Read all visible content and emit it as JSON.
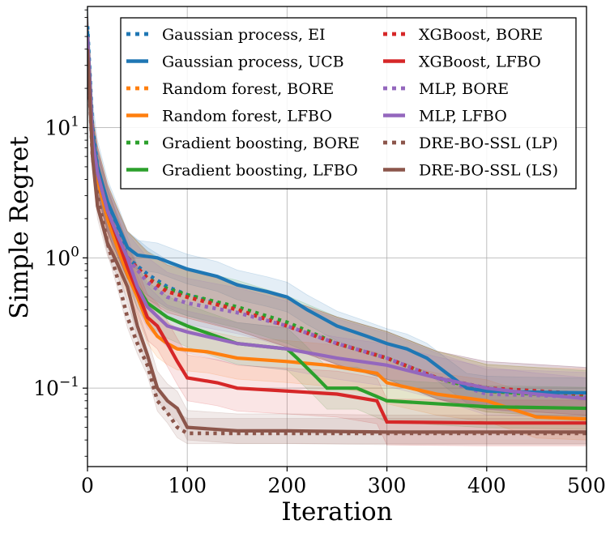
{
  "chart_data": {
    "type": "line",
    "title": "",
    "xlabel": "Iteration",
    "ylabel": "Simple Regret",
    "xlim": [
      0,
      500
    ],
    "ylim": [
      0.025,
      85
    ],
    "yscale": "log",
    "grid": true,
    "legend_location": "upper-right",
    "x_ticks": [
      {
        "value": 0,
        "label": "0"
      },
      {
        "value": 100,
        "label": "100"
      },
      {
        "value": 200,
        "label": "200"
      },
      {
        "value": 300,
        "label": "300"
      },
      {
        "value": 400,
        "label": "400"
      },
      {
        "value": 500,
        "label": "500"
      }
    ],
    "y_ticks": [
      {
        "value": 0.1,
        "base": "10",
        "exp": "−1"
      },
      {
        "value": 1,
        "base": "10",
        "exp": "0"
      },
      {
        "value": 10,
        "base": "10",
        "exp": "1"
      }
    ],
    "series": [
      {
        "name": "Gaussian process, EI",
        "color": "#1f77b4",
        "style": "dotted",
        "points": [
          [
            0,
            60
          ],
          [
            5,
            10
          ],
          [
            10,
            5
          ],
          [
            20,
            2.5
          ],
          [
            30,
            1.6
          ],
          [
            40,
            1.0
          ],
          [
            60,
            0.75
          ],
          [
            80,
            0.6
          ],
          [
            100,
            0.52
          ],
          [
            150,
            0.4
          ],
          [
            200,
            0.3
          ],
          [
            250,
            0.22
          ],
          [
            300,
            0.17
          ],
          [
            350,
            0.12
          ],
          [
            400,
            0.1
          ],
          [
            450,
            0.095
          ],
          [
            500,
            0.09
          ]
        ],
        "band": [
          1.6,
          1.45
        ]
      },
      {
        "name": "Gaussian process, UCB",
        "color": "#1f77b4",
        "style": "solid",
        "points": [
          [
            0,
            55
          ],
          [
            5,
            9
          ],
          [
            10,
            5
          ],
          [
            20,
            2.7
          ],
          [
            30,
            1.8
          ],
          [
            40,
            1.2
          ],
          [
            50,
            1.05
          ],
          [
            70,
            1.0
          ],
          [
            100,
            0.82
          ],
          [
            130,
            0.72
          ],
          [
            150,
            0.62
          ],
          [
            180,
            0.55
          ],
          [
            200,
            0.5
          ],
          [
            220,
            0.4
          ],
          [
            250,
            0.3
          ],
          [
            280,
            0.25
          ],
          [
            300,
            0.22
          ],
          [
            320,
            0.2
          ],
          [
            340,
            0.17
          ],
          [
            360,
            0.13
          ],
          [
            380,
            0.1
          ],
          [
            400,
            0.095
          ],
          [
            450,
            0.093
          ],
          [
            500,
            0.092
          ]
        ],
        "band": [
          1.3,
          1.3
        ]
      },
      {
        "name": "Random forest, BORE",
        "color": "#ff7f0e",
        "style": "dotted",
        "points": [
          [
            0,
            50
          ],
          [
            5,
            8
          ],
          [
            10,
            4.5
          ],
          [
            20,
            2.3
          ],
          [
            30,
            1.5
          ],
          [
            40,
            1.0
          ],
          [
            60,
            0.68
          ],
          [
            80,
            0.55
          ],
          [
            100,
            0.5
          ],
          [
            150,
            0.4
          ],
          [
            200,
            0.3
          ],
          [
            250,
            0.22
          ],
          [
            300,
            0.17
          ],
          [
            350,
            0.12
          ],
          [
            400,
            0.095
          ],
          [
            450,
            0.09
          ],
          [
            500,
            0.088
          ]
        ],
        "band": [
          1.6,
          1.45
        ]
      },
      {
        "name": "Random forest, LFBO",
        "color": "#ff7f0e",
        "style": "solid",
        "points": [
          [
            0,
            50
          ],
          [
            5,
            8
          ],
          [
            10,
            4
          ],
          [
            20,
            2.0
          ],
          [
            30,
            1.2
          ],
          [
            40,
            0.75
          ],
          [
            50,
            0.5
          ],
          [
            60,
            0.32
          ],
          [
            70,
            0.25
          ],
          [
            80,
            0.22
          ],
          [
            90,
            0.2
          ],
          [
            120,
            0.19
          ],
          [
            150,
            0.17
          ],
          [
            200,
            0.16
          ],
          [
            240,
            0.15
          ],
          [
            290,
            0.13
          ],
          [
            300,
            0.11
          ],
          [
            350,
            0.09
          ],
          [
            400,
            0.08
          ],
          [
            450,
            0.06
          ],
          [
            500,
            0.058
          ]
        ],
        "band": [
          1.45,
          1.45
        ]
      },
      {
        "name": "Gradient boosting, BORE",
        "color": "#2ca02c",
        "style": "dotted",
        "points": [
          [
            0,
            50
          ],
          [
            5,
            8
          ],
          [
            10,
            4.5
          ],
          [
            20,
            2.3
          ],
          [
            30,
            1.5
          ],
          [
            40,
            1.0
          ],
          [
            60,
            0.7
          ],
          [
            80,
            0.58
          ],
          [
            100,
            0.52
          ],
          [
            150,
            0.42
          ],
          [
            200,
            0.32
          ],
          [
            250,
            0.22
          ],
          [
            300,
            0.17
          ],
          [
            350,
            0.12
          ],
          [
            400,
            0.095
          ],
          [
            450,
            0.09
          ],
          [
            500,
            0.085
          ]
        ],
        "band": [
          1.6,
          1.45
        ]
      },
      {
        "name": "Gradient boosting, LFBO",
        "color": "#2ca02c",
        "style": "solid",
        "points": [
          [
            0,
            50
          ],
          [
            5,
            8
          ],
          [
            10,
            4.5
          ],
          [
            20,
            2.3
          ],
          [
            30,
            1.4
          ],
          [
            40,
            0.9
          ],
          [
            50,
            0.6
          ],
          [
            60,
            0.45
          ],
          [
            80,
            0.35
          ],
          [
            100,
            0.3
          ],
          [
            150,
            0.22
          ],
          [
            200,
            0.2
          ],
          [
            210,
            0.17
          ],
          [
            230,
            0.12
          ],
          [
            240,
            0.1
          ],
          [
            270,
            0.1
          ],
          [
            300,
            0.08
          ],
          [
            400,
            0.072
          ],
          [
            500,
            0.07
          ]
        ],
        "band": [
          1.45,
          1.45
        ]
      },
      {
        "name": "XGBoost, BORE",
        "color": "#d62728",
        "style": "dotted",
        "points": [
          [
            0,
            50
          ],
          [
            5,
            8
          ],
          [
            10,
            4.5
          ],
          [
            20,
            2.3
          ],
          [
            30,
            1.5
          ],
          [
            40,
            1.0
          ],
          [
            60,
            0.7
          ],
          [
            80,
            0.55
          ],
          [
            100,
            0.5
          ],
          [
            150,
            0.4
          ],
          [
            200,
            0.3
          ],
          [
            250,
            0.22
          ],
          [
            300,
            0.17
          ],
          [
            350,
            0.12
          ],
          [
            400,
            0.1
          ],
          [
            450,
            0.095
          ],
          [
            500,
            0.09
          ]
        ],
        "band": [
          1.6,
          1.45
        ]
      },
      {
        "name": "XGBoost, LFBO",
        "color": "#d62728",
        "style": "solid",
        "points": [
          [
            0,
            50
          ],
          [
            5,
            8
          ],
          [
            10,
            4.5
          ],
          [
            20,
            2.3
          ],
          [
            30,
            1.4
          ],
          [
            40,
            0.85
          ],
          [
            50,
            0.55
          ],
          [
            60,
            0.35
          ],
          [
            70,
            0.3
          ],
          [
            80,
            0.22
          ],
          [
            90,
            0.16
          ],
          [
            100,
            0.12
          ],
          [
            130,
            0.11
          ],
          [
            150,
            0.1
          ],
          [
            200,
            0.095
          ],
          [
            250,
            0.09
          ],
          [
            290,
            0.08
          ],
          [
            300,
            0.055
          ],
          [
            400,
            0.054
          ],
          [
            500,
            0.054
          ]
        ],
        "band": [
          1.5,
          1.5
        ]
      },
      {
        "name": "MLP, BORE",
        "color": "#9467bd",
        "style": "dotted",
        "points": [
          [
            0,
            50
          ],
          [
            5,
            8
          ],
          [
            10,
            4.5
          ],
          [
            20,
            2.3
          ],
          [
            30,
            1.5
          ],
          [
            40,
            1.0
          ],
          [
            60,
            0.65
          ],
          [
            80,
            0.5
          ],
          [
            100,
            0.45
          ],
          [
            150,
            0.38
          ],
          [
            200,
            0.3
          ],
          [
            250,
            0.22
          ],
          [
            300,
            0.17
          ],
          [
            350,
            0.12
          ],
          [
            400,
            0.09
          ],
          [
            450,
            0.088
          ],
          [
            500,
            0.085
          ]
        ],
        "band": [
          1.55,
          1.45
        ]
      },
      {
        "name": "MLP, LFBO",
        "color": "#9467bd",
        "style": "solid",
        "points": [
          [
            0,
            50
          ],
          [
            5,
            8
          ],
          [
            10,
            4.5
          ],
          [
            20,
            2.3
          ],
          [
            30,
            1.5
          ],
          [
            40,
            1.0
          ],
          [
            50,
            0.6
          ],
          [
            60,
            0.42
          ],
          [
            80,
            0.3
          ],
          [
            100,
            0.27
          ],
          [
            150,
            0.22
          ],
          [
            200,
            0.2
          ],
          [
            250,
            0.17
          ],
          [
            300,
            0.15
          ],
          [
            350,
            0.12
          ],
          [
            400,
            0.1
          ],
          [
            450,
            0.09
          ],
          [
            500,
            0.083
          ]
        ],
        "band": [
          1.45,
          1.45
        ]
      },
      {
        "name": "DRE-BO-SSL (LP)",
        "color": "#8c564b",
        "style": "dotted",
        "points": [
          [
            0,
            40
          ],
          [
            5,
            6
          ],
          [
            10,
            3
          ],
          [
            20,
            1.3
          ],
          [
            30,
            0.7
          ],
          [
            40,
            0.35
          ],
          [
            50,
            0.22
          ],
          [
            60,
            0.15
          ],
          [
            70,
            0.08
          ],
          [
            80,
            0.065
          ],
          [
            90,
            0.05
          ],
          [
            100,
            0.045
          ],
          [
            150,
            0.045
          ],
          [
            200,
            0.045
          ],
          [
            300,
            0.045
          ],
          [
            400,
            0.045
          ],
          [
            500,
            0.045
          ]
        ],
        "band": [
          1.3,
          1.2
        ]
      },
      {
        "name": "DRE-BO-SSL (LS)",
        "color": "#8c564b",
        "style": "solid",
        "points": [
          [
            0,
            40
          ],
          [
            5,
            6
          ],
          [
            10,
            2.5
          ],
          [
            20,
            1.3
          ],
          [
            30,
            0.9
          ],
          [
            40,
            0.6
          ],
          [
            50,
            0.3
          ],
          [
            60,
            0.18
          ],
          [
            70,
            0.1
          ],
          [
            80,
            0.08
          ],
          [
            90,
            0.07
          ],
          [
            100,
            0.05
          ],
          [
            150,
            0.047
          ],
          [
            200,
            0.047
          ],
          [
            300,
            0.046
          ],
          [
            400,
            0.046
          ],
          [
            500,
            0.046
          ]
        ],
        "band": [
          1.35,
          1.25
        ]
      }
    ]
  }
}
